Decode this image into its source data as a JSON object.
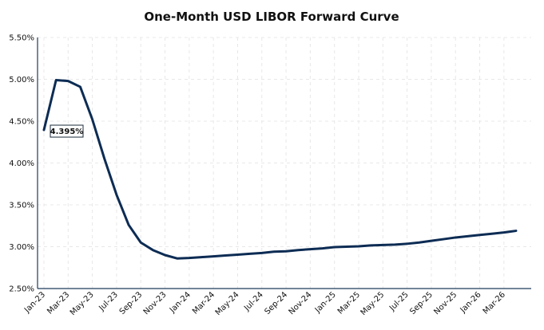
{
  "chart_data": {
    "type": "line",
    "title": "One-Month USD LIBOR Forward Curve",
    "xlabel": "",
    "ylabel": "",
    "ylim": [
      2.5,
      5.5
    ],
    "yticks": [
      "2.50%",
      "3.00%",
      "3.50%",
      "4.00%",
      "4.50%",
      "5.00%",
      "5.50%"
    ],
    "xticks": [
      "Jan-23",
      "Mar-23",
      "May-23",
      "Jul-23",
      "Sep-23",
      "Nov-23",
      "Jan-24",
      "Mar-24",
      "May-24",
      "Jul-24",
      "Sep-24",
      "Nov-24",
      "Jan-25",
      "Mar-25",
      "May-25",
      "Jul-25",
      "Sep-25",
      "Nov-25",
      "Jan-26",
      "Mar-26"
    ],
    "grid": true,
    "color": "#0d2c54",
    "series": [
      {
        "x": [
          "2023-01",
          "2023-02",
          "2023-03",
          "2023-04",
          "2023-05",
          "2023-06",
          "2023-07",
          "2023-08",
          "2023-09",
          "2023-10",
          "2023-11",
          "2023-12",
          "2024-01",
          "2024-02",
          "2024-03",
          "2024-04",
          "2024-05",
          "2024-06",
          "2024-07",
          "2024-08",
          "2024-09",
          "2024-10",
          "2024-11",
          "2024-12",
          "2025-01",
          "2025-02",
          "2025-03",
          "2025-04",
          "2025-05",
          "2025-06",
          "2025-07",
          "2025-08",
          "2025-09",
          "2025-10",
          "2025-11",
          "2025-12",
          "2026-01",
          "2026-02",
          "2026-03",
          "2026-04"
        ],
        "values": [
          4.395,
          4.99,
          4.98,
          4.91,
          4.52,
          4.05,
          3.62,
          3.26,
          3.05,
          2.96,
          2.9,
          2.86,
          2.865,
          2.875,
          2.885,
          2.895,
          2.905,
          2.915,
          2.925,
          2.94,
          2.945,
          2.96,
          2.97,
          2.98,
          2.995,
          3.0,
          3.005,
          3.015,
          3.02,
          3.025,
          3.035,
          3.05,
          3.07,
          3.09,
          3.11,
          3.125,
          3.14,
          3.155,
          3.17,
          3.19
        ]
      }
    ],
    "annotations": [
      {
        "text": "4.395%",
        "series_index": 0,
        "point_index": 0
      }
    ]
  }
}
